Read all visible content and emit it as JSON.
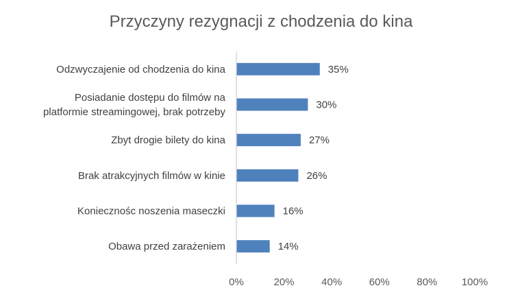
{
  "chart_data": {
    "type": "bar",
    "orientation": "horizontal",
    "title": "Przyczyny rezygnacji z chodzenia do kina",
    "categories": [
      [
        "Odzwyczajenie od chodzenia do kina"
      ],
      [
        "Posiadanie dostępu do filmów na",
        "platformie streamingowej, brak potrzeby"
      ],
      [
        "Zbyt drogie bilety do kina"
      ],
      [
        "Brak atrakcyjnych filmów w kinie"
      ],
      [
        "Koniecznośc noszenia maseczki"
      ],
      [
        "Obawa przed zarażeniem"
      ]
    ],
    "values": [
      35,
      30,
      27,
      26,
      16,
      14
    ],
    "value_labels": [
      "35%",
      "30%",
      "27%",
      "26%",
      "16%",
      "14%"
    ],
    "xlim": [
      0,
      100
    ],
    "x_ticks": [
      "0%",
      "20%",
      "40%",
      "60%",
      "80%",
      "100%"
    ],
    "grid": false,
    "legend": "none",
    "bar_color": "#4f81bd",
    "axis_color": "#d9d9d9"
  }
}
